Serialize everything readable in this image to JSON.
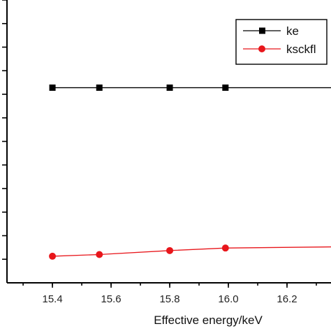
{
  "chart_data": {
    "type": "line",
    "xlabel": "Effective energy/keV",
    "ylabel": "",
    "xlim": [
      15.245,
      16.35
    ],
    "ylim": [
      0,
      1
    ],
    "x_ticks": [
      "15.4",
      "15.6",
      "15.8",
      "16.0",
      "16.2"
    ],
    "legend_position": "top-right",
    "series": [
      {
        "name": "ke",
        "color": "#000000",
        "marker": "square",
        "points": [
          {
            "x": 15.4,
            "y": 0.69
          },
          {
            "x": 15.56,
            "y": 0.69
          },
          {
            "x": 15.8,
            "y": 0.69
          },
          {
            "x": 15.99,
            "y": 0.69
          },
          {
            "x": 16.35,
            "y": 0.69
          }
        ],
        "marker_count": 4
      },
      {
        "name": "ksckfl",
        "color": "#e8161b",
        "marker": "circle",
        "points": [
          {
            "x": 15.4,
            "y": 0.094
          },
          {
            "x": 15.56,
            "y": 0.1
          },
          {
            "x": 15.8,
            "y": 0.114
          },
          {
            "x": 15.99,
            "y": 0.123
          },
          {
            "x": 16.35,
            "y": 0.127
          }
        ],
        "marker_count": 4
      }
    ]
  }
}
